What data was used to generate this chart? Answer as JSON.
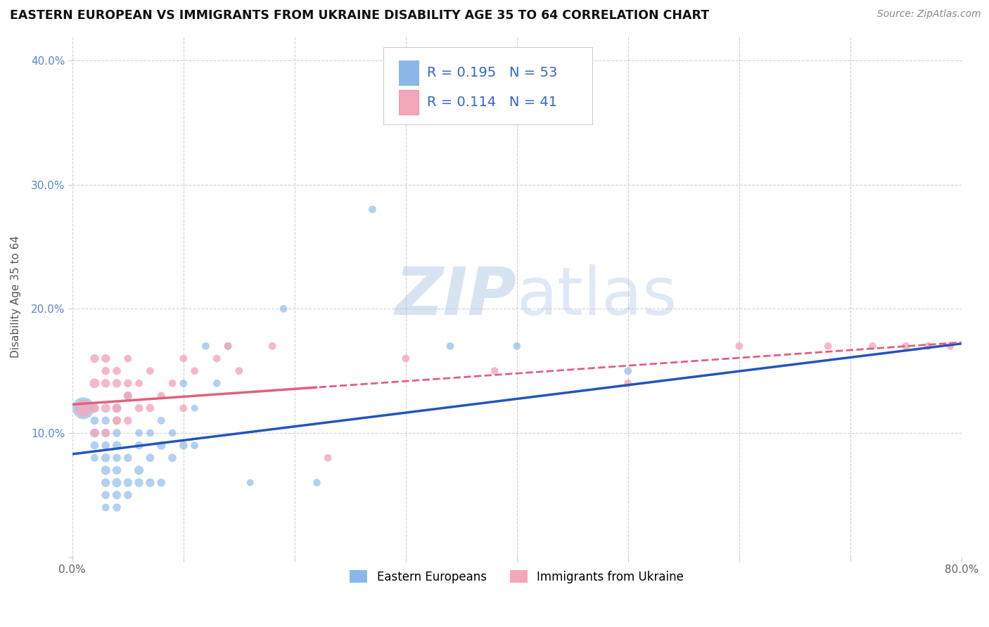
{
  "title": "EASTERN EUROPEAN VS IMMIGRANTS FROM UKRAINE DISABILITY AGE 35 TO 64 CORRELATION CHART",
  "source": "Source: ZipAtlas.com",
  "xlabel": "",
  "ylabel": "Disability Age 35 to 64",
  "xlim": [
    0.0,
    0.8
  ],
  "ylim": [
    0.0,
    0.42
  ],
  "xticks": [
    0.0,
    0.1,
    0.2,
    0.3,
    0.4,
    0.5,
    0.6,
    0.7,
    0.8
  ],
  "yticks": [
    0.0,
    0.1,
    0.2,
    0.3,
    0.4
  ],
  "grid_color": "#cccccc",
  "background_color": "#ffffff",
  "eastern_color": "#89b8e8",
  "ukraine_color": "#f4a7b9",
  "eastern_line_color": "#2255bb",
  "ukraine_line_color": "#e06080",
  "eastern_R": 0.195,
  "eastern_N": 53,
  "ukraine_R": 0.114,
  "ukraine_N": 41,
  "legend_label_eastern": "Eastern Europeans",
  "legend_label_ukraine": "Immigrants from Ukraine",
  "eastern_scatter_x": [
    0.01,
    0.02,
    0.02,
    0.02,
    0.02,
    0.02,
    0.03,
    0.03,
    0.03,
    0.03,
    0.03,
    0.03,
    0.03,
    0.03,
    0.04,
    0.04,
    0.04,
    0.04,
    0.04,
    0.04,
    0.04,
    0.04,
    0.04,
    0.05,
    0.05,
    0.05,
    0.05,
    0.06,
    0.06,
    0.06,
    0.06,
    0.07,
    0.07,
    0.07,
    0.08,
    0.08,
    0.08,
    0.09,
    0.09,
    0.1,
    0.1,
    0.11,
    0.11,
    0.12,
    0.13,
    0.14,
    0.16,
    0.19,
    0.22,
    0.27,
    0.34,
    0.4,
    0.5
  ],
  "eastern_scatter_y": [
    0.12,
    0.08,
    0.09,
    0.1,
    0.11,
    0.12,
    0.04,
    0.05,
    0.06,
    0.07,
    0.08,
    0.09,
    0.1,
    0.11,
    0.04,
    0.05,
    0.06,
    0.07,
    0.08,
    0.09,
    0.1,
    0.11,
    0.12,
    0.05,
    0.06,
    0.08,
    0.13,
    0.06,
    0.07,
    0.09,
    0.1,
    0.06,
    0.08,
    0.1,
    0.06,
    0.09,
    0.11,
    0.08,
    0.1,
    0.09,
    0.14,
    0.09,
    0.12,
    0.17,
    0.14,
    0.17,
    0.06,
    0.2,
    0.06,
    0.28,
    0.17,
    0.17,
    0.15
  ],
  "eastern_scatter_sizes": [
    500,
    60,
    70,
    80,
    70,
    60,
    60,
    70,
    80,
    90,
    80,
    70,
    60,
    70,
    70,
    80,
    90,
    80,
    70,
    80,
    70,
    60,
    70,
    70,
    80,
    70,
    60,
    80,
    90,
    70,
    60,
    80,
    70,
    60,
    70,
    80,
    60,
    70,
    60,
    70,
    60,
    60,
    50,
    60,
    60,
    60,
    50,
    60,
    60,
    60,
    60,
    60,
    60
  ],
  "ukraine_scatter_x": [
    0.01,
    0.02,
    0.02,
    0.02,
    0.02,
    0.03,
    0.03,
    0.03,
    0.03,
    0.03,
    0.04,
    0.04,
    0.04,
    0.04,
    0.05,
    0.05,
    0.05,
    0.05,
    0.06,
    0.06,
    0.07,
    0.07,
    0.08,
    0.09,
    0.1,
    0.1,
    0.11,
    0.13,
    0.14,
    0.15,
    0.18,
    0.23,
    0.3,
    0.38,
    0.5,
    0.6,
    0.68,
    0.72,
    0.75,
    0.77,
    0.79
  ],
  "ukraine_scatter_y": [
    0.12,
    0.1,
    0.12,
    0.14,
    0.16,
    0.1,
    0.12,
    0.14,
    0.15,
    0.16,
    0.11,
    0.12,
    0.14,
    0.15,
    0.11,
    0.13,
    0.14,
    0.16,
    0.12,
    0.14,
    0.12,
    0.15,
    0.13,
    0.14,
    0.12,
    0.16,
    0.15,
    0.16,
    0.17,
    0.15,
    0.17,
    0.08,
    0.16,
    0.15,
    0.14,
    0.17,
    0.17,
    0.17,
    0.17,
    0.17,
    0.17
  ],
  "ukraine_scatter_sizes": [
    300,
    80,
    90,
    100,
    80,
    80,
    90,
    80,
    70,
    80,
    80,
    90,
    80,
    70,
    70,
    80,
    70,
    60,
    70,
    60,
    70,
    60,
    60,
    60,
    60,
    60,
    60,
    60,
    60,
    60,
    60,
    60,
    60,
    60,
    60,
    60,
    60,
    60,
    60,
    60,
    60
  ],
  "eastern_trend_x0": 0.0,
  "eastern_trend_y0": 0.083,
  "eastern_trend_x1": 0.8,
  "eastern_trend_y1": 0.172,
  "ukraine_trend_x0": 0.0,
  "ukraine_trend_y0": 0.123,
  "ukraine_trend_x1": 0.8,
  "ukraine_trend_y1": 0.173
}
